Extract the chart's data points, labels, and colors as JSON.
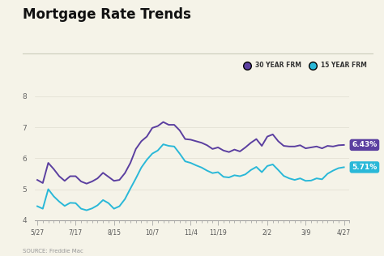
{
  "title": "Mortgage Rate Trends",
  "background_color": "#f5f3e8",
  "source_text": "SOURCE: Freddie Mac",
  "x_labels": [
    "5/27",
    "7/17",
    "8/15",
    "10/7",
    "11/4",
    "11/19",
    "2/2",
    "3/9",
    "4/27"
  ],
  "x_positions": [
    0,
    7,
    14,
    21,
    28,
    33,
    42,
    49,
    56
  ],
  "ylim": [
    4.0,
    8.3
  ],
  "yticks": [
    4,
    5,
    6,
    7,
    8
  ],
  "color_30yr": "#5b3fa0",
  "color_15yr": "#29b8d8",
  "label_30yr": "30 YEAR FRM",
  "label_15yr": "15 YEAR FRM",
  "end_label_30yr": "6.43%",
  "end_label_15yr": "5.71%",
  "line_30yr": [
    5.3,
    5.2,
    5.85,
    5.65,
    5.42,
    5.27,
    5.42,
    5.42,
    5.25,
    5.18,
    5.25,
    5.35,
    5.53,
    5.4,
    5.27,
    5.3,
    5.52,
    5.85,
    6.3,
    6.55,
    6.7,
    6.98,
    7.04,
    7.17,
    7.08,
    7.08,
    6.9,
    6.62,
    6.6,
    6.55,
    6.5,
    6.42,
    6.3,
    6.35,
    6.25,
    6.2,
    6.28,
    6.22,
    6.35,
    6.5,
    6.62,
    6.4,
    6.7,
    6.77,
    6.55,
    6.4,
    6.38,
    6.38,
    6.42,
    6.32,
    6.35,
    6.38,
    6.32,
    6.4,
    6.38,
    6.42,
    6.43
  ],
  "line_15yr": [
    4.45,
    4.37,
    5.0,
    4.77,
    4.6,
    4.46,
    4.56,
    4.55,
    4.37,
    4.32,
    4.38,
    4.48,
    4.65,
    4.55,
    4.37,
    4.45,
    4.68,
    5.02,
    5.35,
    5.7,
    5.95,
    6.15,
    6.25,
    6.45,
    6.4,
    6.38,
    6.15,
    5.9,
    5.85,
    5.77,
    5.7,
    5.6,
    5.52,
    5.55,
    5.4,
    5.38,
    5.45,
    5.42,
    5.48,
    5.62,
    5.72,
    5.55,
    5.75,
    5.8,
    5.62,
    5.43,
    5.35,
    5.3,
    5.35,
    5.27,
    5.28,
    5.35,
    5.32,
    5.5,
    5.6,
    5.68,
    5.71
  ]
}
